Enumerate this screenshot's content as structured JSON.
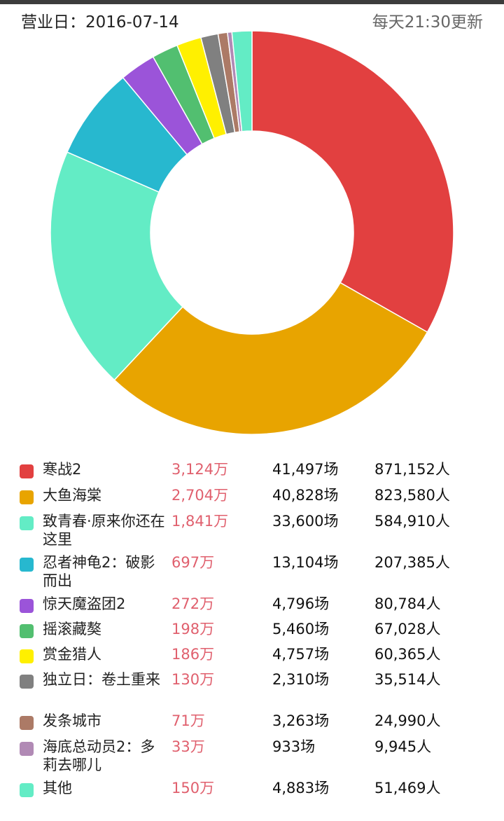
{
  "header": {
    "date_label": "营业日：2016-07-14",
    "update_label": "每天21:30更新"
  },
  "chart_data": {
    "type": "pie",
    "categories": [
      "寒战2",
      "大鱼海棠",
      "致青春·原来你还在这里",
      "忍者神龟2：破影而出",
      "惊天魔盗团2",
      "摇滚藏獒",
      "赏金猎人",
      "独立日：卷土重来",
      "发条城市",
      "海底总动员2：多莉去哪儿",
      "其他"
    ],
    "values": [
      3124,
      2704,
      1841,
      697,
      272,
      198,
      186,
      130,
      71,
      33,
      150
    ],
    "unit": "万",
    "colors": [
      "#e24040",
      "#e8a400",
      "#63ecc5",
      "#27b8cf",
      "#9b54d9",
      "#52bf70",
      "#fff000",
      "#808080",
      "#ac7a66",
      "#b18ab5",
      "#63ecc5"
    ]
  },
  "legend": {
    "rows": [
      {
        "name": "寒战2",
        "box": "3,124万",
        "shows": "41,497场",
        "people": "871,152人"
      },
      {
        "name": "大鱼海棠",
        "box": "2,704万",
        "shows": "40,828场",
        "people": "823,580人"
      },
      {
        "name": "致青春·原来你还在这里",
        "box": "1,841万",
        "shows": "33,600场",
        "people": "584,910人"
      },
      {
        "name": "忍者神龟2：破影而出",
        "box": "697万",
        "shows": "13,104场",
        "people": "207,385人"
      },
      {
        "name": "惊天魔盗团2",
        "box": "272万",
        "shows": "4,796场",
        "people": "80,784人"
      },
      {
        "name": "摇滚藏獒",
        "box": "198万",
        "shows": "5,460场",
        "people": "67,028人"
      },
      {
        "name": "赏金猎人",
        "box": "186万",
        "shows": "4,757场",
        "people": "60,365人"
      },
      {
        "name": "独立日：卷土重来",
        "box": "130万",
        "shows": "2,310场",
        "people": "35,514人"
      },
      {
        "name": "发条城市",
        "box": "71万",
        "shows": "3,263场",
        "people": "24,990人"
      },
      {
        "name": "海底总动员2：多莉去哪儿",
        "box": "33万",
        "shows": "933场",
        "people": "9,945人"
      },
      {
        "name": "其他",
        "box": "150万",
        "shows": "4,883场",
        "people": "51,469人"
      }
    ]
  }
}
